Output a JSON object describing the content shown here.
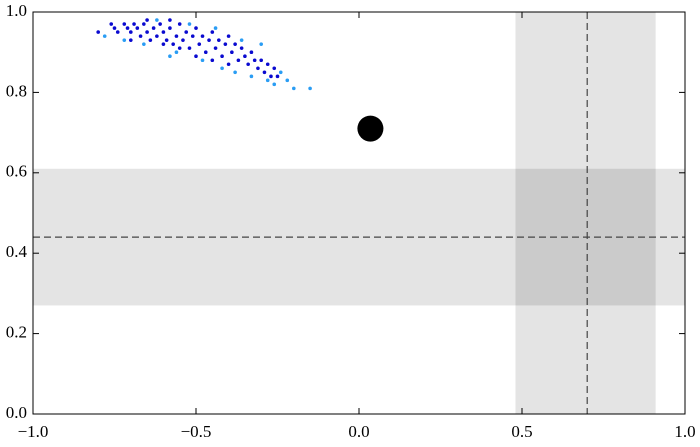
{
  "chart_data": {
    "type": "scatter",
    "xlim": [
      -1,
      1
    ],
    "ylim": [
      0,
      1
    ],
    "xticks": [
      {
        "value": -1,
        "label": "−1.0"
      },
      {
        "value": -0.5,
        "label": "−0.5"
      },
      {
        "value": 0,
        "label": "0.0"
      },
      0.5,
      {
        "value": 1,
        "label": "1.0"
      }
    ],
    "yticks": [
      {
        "value": 0,
        "label": "0.0"
      },
      0.2,
      0.4,
      0.6,
      0.8,
      {
        "value": 1,
        "label": "1.0"
      }
    ],
    "x_band": [
      0.48,
      0.91
    ],
    "y_band": [
      0.27,
      0.61
    ],
    "x_line": 0.7,
    "y_line": 0.44,
    "marker": {
      "x": 0.035,
      "y": 0.71,
      "color": "#000000"
    },
    "series": [
      {
        "color": "#0a0ad0",
        "x": [
          -0.8,
          -0.76,
          -0.75,
          -0.74,
          -0.72,
          -0.71,
          -0.7,
          -0.69,
          -0.68,
          -0.67,
          -0.66,
          -0.65,
          -0.64,
          -0.63,
          -0.62,
          -0.61,
          -0.6,
          -0.59,
          -0.58,
          -0.57,
          -0.56,
          -0.55,
          -0.54,
          -0.53,
          -0.52,
          -0.51,
          -0.5,
          -0.49,
          -0.48,
          -0.47,
          -0.46,
          -0.45,
          -0.44,
          -0.43,
          -0.42,
          -0.41,
          -0.4,
          -0.39,
          -0.38,
          -0.37,
          -0.36,
          -0.35,
          -0.34,
          -0.33,
          -0.32,
          -0.31,
          -0.3,
          -0.29,
          -0.28,
          -0.27,
          -0.26,
          -0.25,
          -0.6,
          -0.55,
          -0.65,
          -0.58,
          -0.5,
          -0.45,
          -0.4,
          -0.7
        ],
        "y": [
          0.95,
          0.97,
          0.96,
          0.95,
          0.97,
          0.96,
          0.95,
          0.97,
          0.96,
          0.94,
          0.97,
          0.95,
          0.93,
          0.96,
          0.94,
          0.97,
          0.95,
          0.93,
          0.96,
          0.92,
          0.94,
          0.97,
          0.93,
          0.95,
          0.91,
          0.94,
          0.96,
          0.92,
          0.94,
          0.9,
          0.93,
          0.95,
          0.91,
          0.93,
          0.89,
          0.92,
          0.94,
          0.9,
          0.92,
          0.88,
          0.91,
          0.89,
          0.87,
          0.9,
          0.88,
          0.86,
          0.88,
          0.85,
          0.87,
          0.84,
          0.86,
          0.84,
          0.92,
          0.91,
          0.98,
          0.98,
          0.89,
          0.88,
          0.87,
          0.93
        ]
      },
      {
        "color": "#2a9df4",
        "x": [
          -0.78,
          -0.66,
          -0.62,
          -0.56,
          -0.52,
          -0.48,
          -0.44,
          -0.42,
          -0.38,
          -0.36,
          -0.33,
          -0.3,
          -0.28,
          -0.26,
          -0.24,
          -0.22,
          -0.2,
          -0.15,
          -0.72,
          -0.58
        ],
        "y": [
          0.94,
          0.92,
          0.98,
          0.9,
          0.97,
          0.88,
          0.96,
          0.86,
          0.85,
          0.93,
          0.84,
          0.92,
          0.83,
          0.82,
          0.85,
          0.83,
          0.81,
          0.81,
          0.93,
          0.89
        ]
      }
    ]
  }
}
